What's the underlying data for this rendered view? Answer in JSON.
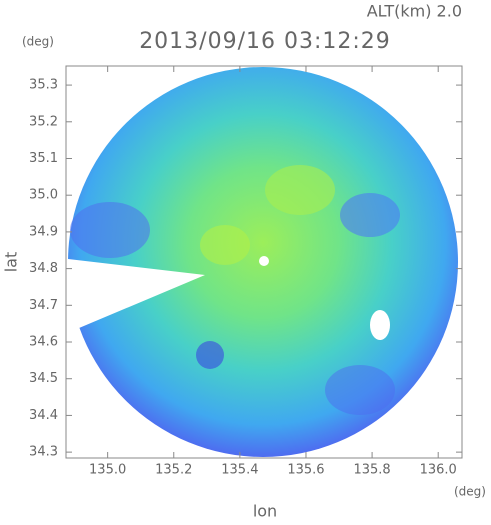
{
  "chart_data": {
    "type": "radar-map",
    "title": "2013/09/16 03:12:29",
    "annotation": "ALT(km) 2.0",
    "x_label": "lon",
    "y_label": "lat",
    "x_unit": "(deg)",
    "y_unit": "(deg)",
    "xlim": [
      134.874,
      136.072
    ],
    "ylim": [
      34.284,
      35.352
    ],
    "xticks": [
      {
        "value": 135.0,
        "label": "135.0"
      },
      135.2,
      135.4,
      135.6,
      135.8,
      {
        "value": 136.0,
        "label": "136.0"
      }
    ],
    "yticks": [
      34.3,
      34.4,
      34.5,
      34.6,
      34.7,
      34.8,
      34.9,
      {
        "value": 35.0,
        "label": "35.0"
      },
      35.1,
      35.2,
      35.3
    ]
  }
}
